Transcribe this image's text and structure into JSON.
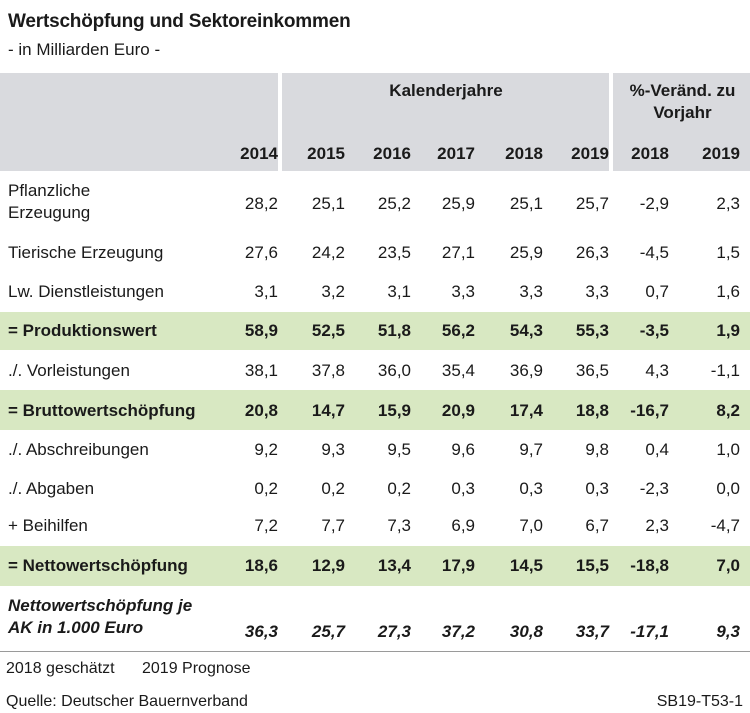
{
  "chart_data": {
    "type": "table",
    "title": "Wertschöpfung und Sektoreinkommen",
    "subtitle": "- in Milliarden Euro -",
    "group_headers": {
      "years": "Kalenderjahre",
      "change": "%-Veränd. zu Vorjahr"
    },
    "columns": [
      "2014",
      "2015",
      "2016",
      "2017",
      "2018",
      "2019",
      "2018",
      "2019"
    ],
    "rows": [
      {
        "label": "Pflanzliche Erzeugung",
        "values": [
          "28,2",
          "25,1",
          "25,2",
          "25,9",
          "25,1",
          "25,7",
          "-2,9",
          "2,3"
        ],
        "highlight": false,
        "bold": false
      },
      {
        "label": "Tierische Erzeugung",
        "values": [
          "27,6",
          "24,2",
          "23,5",
          "27,1",
          "25,9",
          "26,3",
          "-4,5",
          "1,5"
        ],
        "highlight": false,
        "bold": false
      },
      {
        "label": "Lw. Dienstleistungen",
        "values": [
          "3,1",
          "3,2",
          "3,1",
          "3,3",
          "3,3",
          "3,3",
          "0,7",
          "1,6"
        ],
        "highlight": false,
        "bold": false
      },
      {
        "label": "= Produktionswert",
        "values": [
          "58,9",
          "52,5",
          "51,8",
          "56,2",
          "54,3",
          "55,3",
          "-3,5",
          "1,9"
        ],
        "highlight": true,
        "bold": true
      },
      {
        "label": "./. Vorleistungen",
        "values": [
          "38,1",
          "37,8",
          "36,0",
          "35,4",
          "36,9",
          "36,5",
          "4,3",
          "-1,1"
        ],
        "highlight": false,
        "bold": false
      },
      {
        "label": "= Bruttowertschöpfung",
        "values": [
          "20,8",
          "14,7",
          "15,9",
          "20,9",
          "17,4",
          "18,8",
          "-16,7",
          "8,2"
        ],
        "highlight": true,
        "bold": true
      },
      {
        "label": "./. Abschreibungen",
        "values": [
          "9,2",
          "9,3",
          "9,5",
          "9,6",
          "9,7",
          "9,8",
          "0,4",
          "1,0"
        ],
        "highlight": false,
        "bold": false
      },
      {
        "label": "./. Abgaben",
        "values": [
          "0,2",
          "0,2",
          "0,2",
          "0,3",
          "0,3",
          "0,3",
          "-2,3",
          "0,0"
        ],
        "highlight": false,
        "bold": false
      },
      {
        "label": "+ Beihilfen",
        "values": [
          "7,2",
          "7,7",
          "7,3",
          "6,9",
          "7,0",
          "6,7",
          "2,3",
          "-4,7"
        ],
        "highlight": false,
        "bold": false
      },
      {
        "label": "= Nettowertschöpfung",
        "values": [
          "18,6",
          "12,9",
          "13,4",
          "17,9",
          "14,5",
          "15,5",
          "-18,8",
          "7,0"
        ],
        "highlight": true,
        "bold": true
      },
      {
        "label": "Nettowertschöpfung je AK in 1.000 Euro",
        "values": [
          "36,3",
          "25,7",
          "27,3",
          "37,2",
          "30,8",
          "33,7",
          "-17,1",
          "9,3"
        ],
        "highlight": false,
        "bold": true,
        "italic": true
      }
    ],
    "notes": [
      "2018 geschätzt",
      "2019 Prognose"
    ],
    "source": "Quelle: Deutscher Bauernverband",
    "code": "SB19-T53-1",
    "colors": {
      "header_band": "#d9dade",
      "highlight_band": "#d8e8c2"
    }
  }
}
